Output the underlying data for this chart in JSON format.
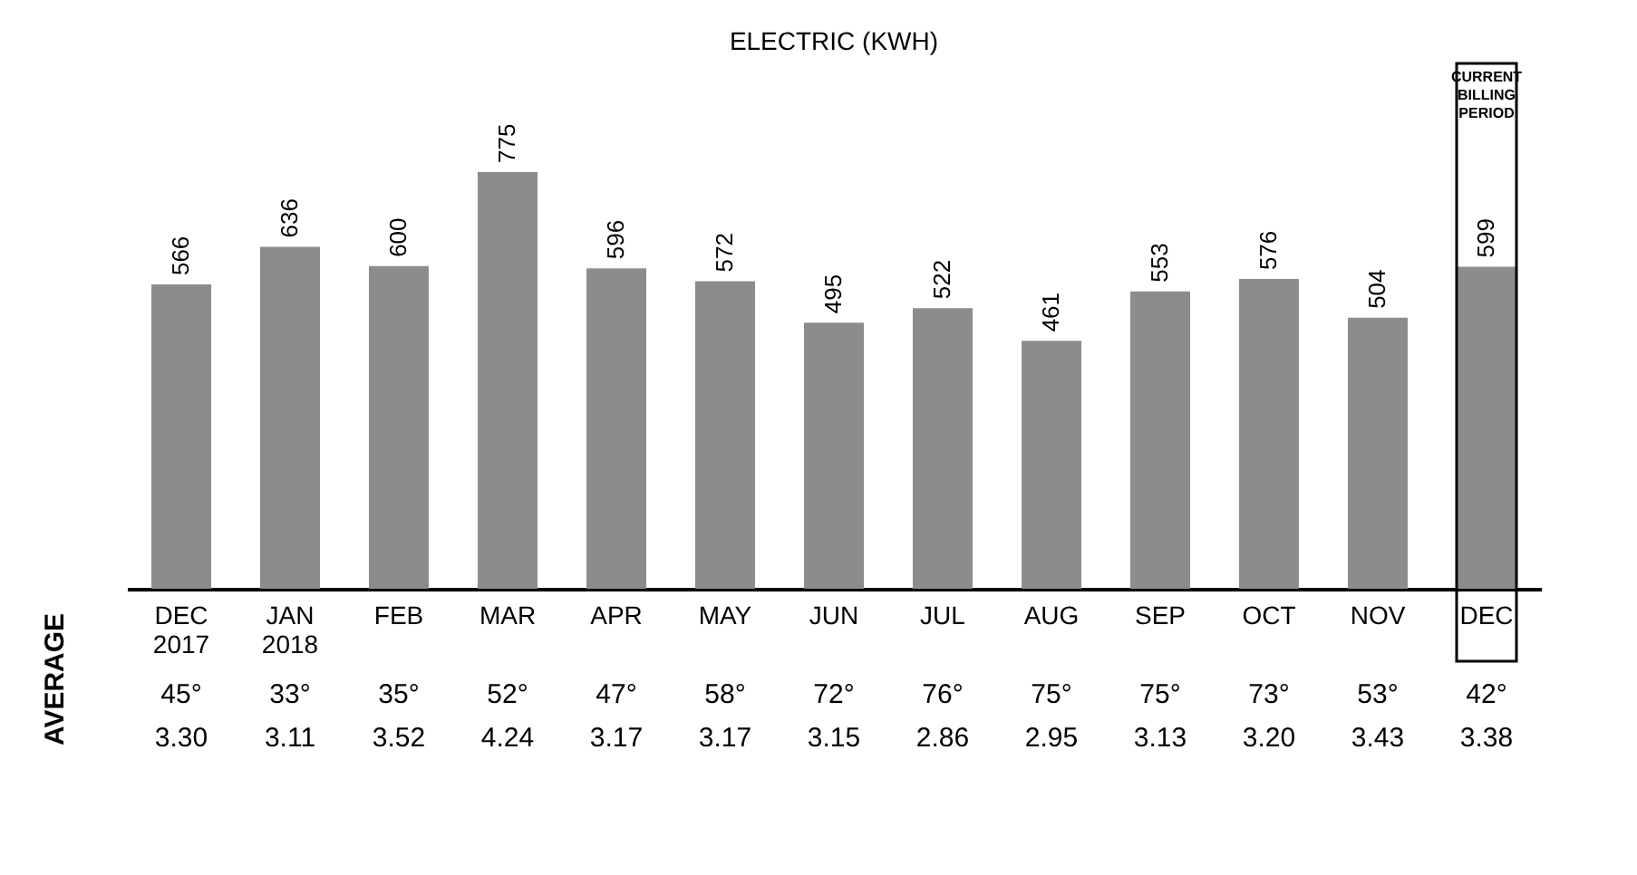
{
  "chart_data": {
    "type": "bar",
    "title": "ELECTRIC (KWH)",
    "categories": [
      "DEC 2017",
      "JAN 2018",
      "FEB",
      "MAR",
      "APR",
      "MAY",
      "JUN",
      "JUL",
      "AUG",
      "SEP",
      "OCT",
      "NOV",
      "DEC"
    ],
    "values": [
      566,
      636,
      600,
      775,
      596,
      572,
      495,
      522,
      461,
      553,
      576,
      504,
      599
    ],
    "color": "#8c8c8c",
    "data_labels": true,
    "annotations": [
      "AVERAGE",
      "CURRENT BILLING PERIOD",
      "45°",
      "3.30",
      "33°",
      "3.11",
      "35°",
      "3.52",
      "52°",
      "4.24",
      "47°",
      "3.17",
      "58°",
      "3.17",
      "72°",
      "3.15",
      "76°",
      "2.86",
      "75°",
      "2.95",
      "75°",
      "3.13",
      "73°",
      "3.20",
      "53°",
      "3.43",
      "42°",
      "3.38"
    ]
  }
}
